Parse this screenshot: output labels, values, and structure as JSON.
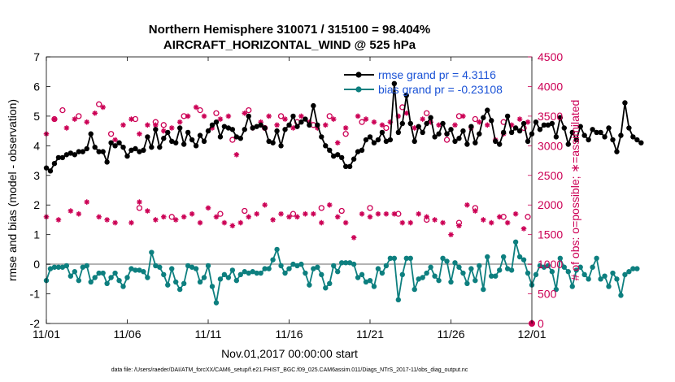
{
  "chart_data": {
    "type": "line",
    "title_line1": "Northern Hemisphere 310071 / 315100 = 98.404%",
    "title_line2": "AIRCRAFT_HORIZONTAL_WIND @ 525 hPa",
    "xlabel": "Nov.01,2017 00:00:00 start",
    "ylabel_left": "rmse and bias (model - observation)",
    "ylabel_right": "# of obs: o=possible; ∗=assimilated",
    "footer": "data file: /Users/raeder/DAI/ATM_forcXX/CAM6_setup/f.e21.FHIST_BGC.f09_025.CAM6assim.011/Diags_NTrS_2017-11/obs_diag_output.nc",
    "x_range": [
      0,
      30
    ],
    "x_ticks": [
      0,
      5,
      10,
      15,
      20,
      25,
      30
    ],
    "x_tick_labels": [
      "11/01",
      "11/06",
      "11/11",
      "11/16",
      "11/21",
      "11/26",
      "12/01"
    ],
    "ylim_left": [
      -2,
      7
    ],
    "y_ticks_left": [
      -2,
      -1,
      0,
      1,
      2,
      3,
      4,
      5,
      6,
      7
    ],
    "y_tick_labels_left": [
      "-2",
      "-1",
      "0",
      "1",
      "2",
      "3",
      "4",
      "5",
      "6",
      "7"
    ],
    "ylim_right": [
      0,
      4500
    ],
    "y_ticks_right": [
      0,
      500,
      1000,
      1500,
      2000,
      2500,
      3000,
      3500,
      4000,
      4500
    ],
    "y_tick_labels_right": [
      "0",
      "500",
      "1000",
      "1500",
      "2000",
      "2500",
      "3000",
      "3500",
      "4000",
      "4500"
    ],
    "legend_position": "top-right",
    "time_step_days": 0.25,
    "series": [
      {
        "name": "rmse grand pr = 4.3116",
        "color": "#000000",
        "values": [
          3.25,
          3.15,
          3.4,
          3.6,
          3.6,
          3.7,
          3.75,
          3.7,
          3.8,
          3.8,
          3.9,
          4.4,
          3.95,
          3.8,
          3.8,
          3.45,
          4.1,
          4.0,
          4.1,
          3.95,
          3.65,
          3.85,
          3.9,
          3.8,
          3.85,
          4.3,
          3.95,
          4.55,
          3.95,
          4.25,
          4.45,
          4.15,
          4.1,
          4.6,
          4.05,
          4.45,
          4.2,
          4.0,
          4.35,
          4.15,
          4.5,
          4.7,
          4.8,
          4.3,
          4.65,
          4.6,
          4.55,
          4.3,
          4.25,
          4.55,
          5.0,
          4.6,
          4.65,
          4.7,
          4.6,
          4.15,
          4.1,
          4.5,
          4.0,
          4.55,
          4.7,
          5.0,
          4.65,
          4.8,
          4.9,
          4.7,
          5.35,
          4.7,
          4.3,
          4.0,
          3.85,
          3.65,
          3.7,
          3.6,
          3.3,
          3.3,
          3.55,
          3.8,
          3.85,
          4.2,
          4.3,
          4.1,
          4.2,
          4.45,
          4.15,
          4.2,
          6.1,
          4.45,
          4.75,
          5.7,
          4.75,
          4.15,
          4.65,
          4.45,
          4.75,
          4.95,
          4.3,
          4.4,
          4.75,
          4.4,
          4.55,
          4.15,
          4.25,
          4.5,
          4.05,
          4.65,
          4.1,
          4.4,
          4.95,
          5.2,
          4.85,
          4.15,
          4.05,
          4.45,
          5.0,
          4.45,
          4.6,
          4.5,
          4.75,
          4.15,
          4.4,
          4.8,
          4.55,
          4.7,
          4.7,
          4.75,
          4.3,
          4.95,
          4.6,
          4.05,
          4.45,
          4.2,
          4.65,
          4.35,
          4.2,
          4.55,
          4.45,
          4.45,
          4.3,
          4.6,
          4.2,
          3.8,
          4.35,
          5.45,
          4.6,
          4.3,
          4.2,
          4.1
        ]
      },
      {
        "name": "bias grand pr = -0.23108",
        "color": "#0d7f7f",
        "values": [
          -0.55,
          -0.15,
          -0.1,
          -0.1,
          -0.1,
          -0.05,
          -0.4,
          -0.25,
          -0.55,
          -0.1,
          -0.05,
          -0.6,
          -0.45,
          -0.3,
          -0.3,
          -0.65,
          -0.45,
          -0.3,
          -0.55,
          -0.75,
          -0.45,
          -0.15,
          -0.2,
          -0.2,
          -0.25,
          -0.45,
          0.4,
          -0.05,
          -0.1,
          -0.35,
          -0.7,
          -0.15,
          -0.6,
          -0.85,
          -0.65,
          -0.05,
          -0.1,
          -0.15,
          -0.6,
          -0.45,
          -0.05,
          -0.75,
          -1.3,
          -0.5,
          -0.35,
          -0.45,
          -0.2,
          -0.55,
          -0.35,
          -0.25,
          -0.3,
          -0.25,
          -0.3,
          -0.3,
          -0.15,
          -0.15,
          0.15,
          0.5,
          -0.05,
          -0.3,
          -0.15,
          0.0,
          -0.05,
          0.0,
          -0.3,
          -0.7,
          -0.15,
          -0.1,
          -0.35,
          -0.8,
          -0.65,
          -0.05,
          -0.25,
          0.05,
          0.05,
          0.05,
          0.0,
          -0.45,
          -0.35,
          -0.6,
          -0.55,
          -0.75,
          -0.15,
          -0.3,
          -0.05,
          0.2,
          0.2,
          -1.2,
          -0.35,
          0.2,
          0.2,
          -0.85,
          -0.5,
          -0.45,
          -0.3,
          -0.1,
          -0.4,
          -0.55,
          0.2,
          0.1,
          -0.6,
          0.05,
          -0.1,
          -0.3,
          -0.65,
          -0.15,
          -0.55,
          -0.05,
          -0.85,
          0.25,
          -0.4,
          -0.4,
          -0.2,
          0.25,
          -0.15,
          -0.2,
          0.75,
          0.25,
          0.15,
          -0.3,
          -0.7,
          -0.35,
          -0.05,
          -0.1,
          -0.05,
          -0.25,
          -0.85,
          0.2,
          -0.1,
          -0.25,
          -0.75,
          -0.2,
          -0.1,
          -0.35,
          -0.5,
          -0.1,
          0.2,
          -0.5,
          -0.4,
          -0.75,
          -0.3,
          -0.5,
          -1.05,
          -0.35,
          -0.25,
          -0.15,
          -0.15
        ]
      }
    ],
    "obs_possible_markers": [
      [
        0.5,
        3450
      ],
      [
        1.0,
        3600
      ],
      [
        2.0,
        3500
      ],
      [
        3.25,
        3700
      ],
      [
        4.0,
        3200
      ],
      [
        5.5,
        3450
      ],
      [
        6.75,
        3400
      ],
      [
        7.25,
        3350
      ],
      [
        8.5,
        3500
      ],
      [
        9.5,
        3600
      ],
      [
        10.5,
        3550
      ],
      [
        11.5,
        3100
      ],
      [
        12.5,
        3600
      ],
      [
        13.5,
        3300
      ],
      [
        14.5,
        3500
      ],
      [
        15.5,
        3400
      ],
      [
        16.5,
        3350
      ],
      [
        17.5,
        3500
      ],
      [
        18.5,
        3200
      ],
      [
        19.5,
        3400
      ],
      [
        21.0,
        3300
      ],
      [
        22.0,
        3650
      ],
      [
        23.5,
        3550
      ],
      [
        24.75,
        3100
      ],
      [
        25.5,
        3500
      ],
      [
        26.5,
        3450
      ],
      [
        28.25,
        3400
      ],
      [
        29.5,
        3300
      ],
      [
        5.75,
        1950
      ],
      [
        7.75,
        1800
      ],
      [
        10.75,
        1850
      ],
      [
        12.25,
        1900
      ],
      [
        15.25,
        1850
      ],
      [
        17.0,
        1950
      ],
      [
        18.25,
        1900
      ],
      [
        20.0,
        1950
      ],
      [
        21.75,
        1850
      ],
      [
        23.5,
        1750
      ],
      [
        25.5,
        1700
      ],
      [
        26.5,
        1950
      ],
      [
        28.25,
        1800
      ],
      [
        29.75,
        1800
      ]
    ],
    "obs_assimilated_markers": [
      [
        0.0,
        3200
      ],
      [
        0.5,
        3450
      ],
      [
        1.25,
        3300
      ],
      [
        1.75,
        3450
      ],
      [
        2.5,
        3400
      ],
      [
        3.0,
        3550
      ],
      [
        3.5,
        3650
      ],
      [
        4.25,
        3100
      ],
      [
        4.75,
        3350
      ],
      [
        5.25,
        3450
      ],
      [
        5.75,
        3200
      ],
      [
        6.25,
        3350
      ],
      [
        6.75,
        3350
      ],
      [
        7.25,
        3250
      ],
      [
        7.75,
        3300
      ],
      [
        8.25,
        3400
      ],
      [
        8.75,
        3500
      ],
      [
        9.25,
        3650
      ],
      [
        9.75,
        3500
      ],
      [
        10.25,
        3300
      ],
      [
        10.75,
        3450
      ],
      [
        11.25,
        3500
      ],
      [
        11.75,
        2850
      ],
      [
        12.25,
        3550
      ],
      [
        12.75,
        3300
      ],
      [
        13.25,
        3400
      ],
      [
        13.75,
        3500
      ],
      [
        14.25,
        3350
      ],
      [
        14.75,
        3450
      ],
      [
        15.25,
        3300
      ],
      [
        15.75,
        3500
      ],
      [
        16.25,
        3400
      ],
      [
        16.75,
        3300
      ],
      [
        17.25,
        3350
      ],
      [
        17.75,
        3450
      ],
      [
        18.0,
        3050
      ],
      [
        18.5,
        3300
      ],
      [
        19.25,
        3500
      ],
      [
        19.75,
        3450
      ],
      [
        20.25,
        3400
      ],
      [
        20.75,
        3350
      ],
      [
        21.25,
        3400
      ],
      [
        21.75,
        3500
      ],
      [
        22.25,
        3550
      ],
      [
        22.75,
        3300
      ],
      [
        23.25,
        3450
      ],
      [
        23.75,
        3400
      ],
      [
        24.25,
        3350
      ],
      [
        24.75,
        3200
      ],
      [
        25.25,
        3350
      ],
      [
        25.75,
        3500
      ],
      [
        26.25,
        3300
      ],
      [
        26.75,
        3400
      ],
      [
        27.25,
        3350
      ],
      [
        27.75,
        3100
      ],
      [
        28.25,
        3200
      ],
      [
        28.75,
        3350
      ],
      [
        29.25,
        3450
      ],
      [
        29.75,
        3400
      ],
      [
        0.0,
        1800
      ],
      [
        0.75,
        1750
      ],
      [
        1.5,
        1900
      ],
      [
        2.0,
        1850
      ],
      [
        2.5,
        2050
      ],
      [
        3.25,
        1800
      ],
      [
        3.75,
        1750
      ],
      [
        4.25,
        1700
      ],
      [
        5.25,
        1700
      ],
      [
        5.75,
        2050
      ],
      [
        6.25,
        1900
      ],
      [
        6.75,
        1750
      ],
      [
        7.25,
        1800
      ],
      [
        8.0,
        1750
      ],
      [
        8.5,
        1800
      ],
      [
        9.0,
        1850
      ],
      [
        9.5,
        1700
      ],
      [
        10.0,
        1950
      ],
      [
        10.5,
        1800
      ],
      [
        11.0,
        1700
      ],
      [
        11.5,
        1650
      ],
      [
        12.0,
        1700
      ],
      [
        12.5,
        1800
      ],
      [
        13.0,
        1850
      ],
      [
        13.5,
        2000
      ],
      [
        14.0,
        1750
      ],
      [
        14.5,
        1850
      ],
      [
        15.0,
        1800
      ],
      [
        15.5,
        1800
      ],
      [
        16.0,
        1850
      ],
      [
        16.5,
        1850
      ],
      [
        17.0,
        1700
      ],
      [
        17.5,
        2000
      ],
      [
        18.0,
        1800
      ],
      [
        18.5,
        1700
      ],
      [
        19.0,
        1450
      ],
      [
        19.5,
        1850
      ],
      [
        20.0,
        1800
      ],
      [
        20.5,
        1850
      ],
      [
        21.0,
        1850
      ],
      [
        21.5,
        1850
      ],
      [
        22.0,
        1700
      ],
      [
        22.5,
        1700
      ],
      [
        23.0,
        1850
      ],
      [
        23.5,
        1800
      ],
      [
        24.0,
        1750
      ],
      [
        24.5,
        1700
      ],
      [
        25.0,
        1500
      ],
      [
        25.5,
        1650
      ],
      [
        26.0,
        2000
      ],
      [
        26.5,
        1900
      ],
      [
        27.0,
        1750
      ],
      [
        27.5,
        1700
      ],
      [
        28.0,
        1800
      ],
      [
        28.5,
        1700
      ],
      [
        29.0,
        1850
      ],
      [
        29.5,
        1600
      ]
    ],
    "zero_obs_marker": [
      30.0,
      0
    ]
  }
}
